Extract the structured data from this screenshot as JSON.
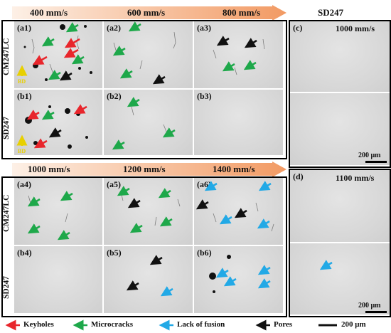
{
  "top_bar": {
    "speeds": [
      "400 mm/s",
      "600 mm/s",
      "800 mm/s"
    ]
  },
  "bottom_bar": {
    "speeds": [
      "1000 mm/s",
      "1200 mm/s",
      "1400 mm/s"
    ]
  },
  "right_title": "SD247",
  "row_labels": {
    "top_row": "CM247LC",
    "bottom_row": "SD247",
    "bd": "BD"
  },
  "panels": {
    "a1": "(a1)",
    "a2": "(a2)",
    "a3": "(a3)",
    "b1": "(b1)",
    "b2": "(b2)",
    "b3": "(b3)",
    "a4": "(a4)",
    "a5": "(a5)",
    "a6": "(a6)",
    "b4": "(b4)",
    "b5": "(b5)",
    "b6": "(b6)",
    "c": "(c)",
    "d": "(d)"
  },
  "c_speed": "1000 mm/s",
  "d_speed": "1100 mm/s",
  "scale": "200 μm",
  "legend": {
    "keyholes": "Keyholes",
    "microcracks": "Microcracks",
    "lack_of_fusion": "Lack of fusion",
    "pores": "Pores",
    "scale": "200 μm"
  },
  "colors": {
    "keyhole": "#e8262c",
    "microcrack": "#1ea84a",
    "lack_of_fusion": "#22a9e6",
    "pore": "#111111",
    "bar_start": "#fde8d8",
    "bar_end": "#f4a070",
    "bd": "#e8d000"
  }
}
